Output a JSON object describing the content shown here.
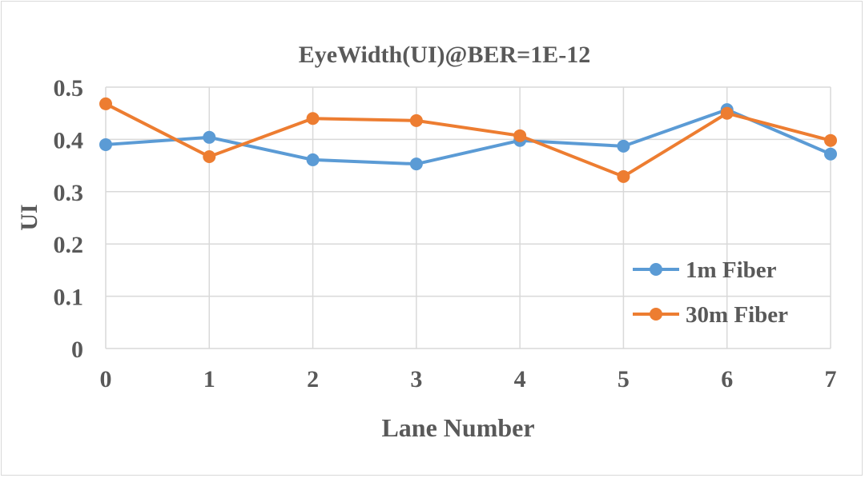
{
  "chart_data": {
    "type": "line",
    "title": "EyeWidth(UI)@BER=1E-12",
    "xlabel": "Lane Number",
    "ylabel": "UI",
    "x": [
      0,
      1,
      2,
      3,
      4,
      5,
      6,
      7
    ],
    "x_tick_labels": [
      "0",
      "1",
      "2",
      "3",
      "4",
      "5",
      "6",
      "7"
    ],
    "y_tick_labels": [
      "0",
      "0.1",
      "0.2",
      "0.3",
      "0.4",
      "0.5"
    ],
    "ylim": [
      0,
      0.5
    ],
    "grid": true,
    "legend_position": "bottom-right",
    "series": [
      {
        "name": "1m Fiber",
        "color": "#5B9BD5",
        "values": [
          0.39,
          0.404,
          0.361,
          0.353,
          0.398,
          0.387,
          0.457,
          0.372
        ]
      },
      {
        "name": "30m Fiber",
        "color": "#ED7D31",
        "values": [
          0.468,
          0.367,
          0.44,
          0.436,
          0.407,
          0.329,
          0.45,
          0.398
        ]
      }
    ]
  }
}
